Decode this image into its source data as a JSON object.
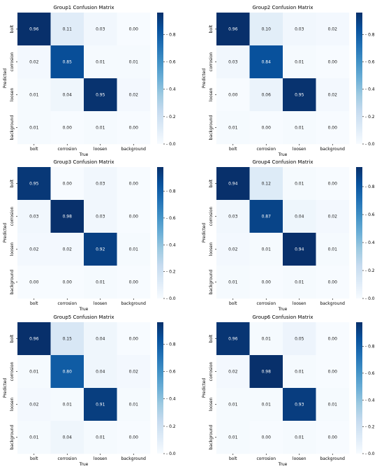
{
  "chart_data": [
    {
      "type": "heatmap",
      "title": "Group1 Confusion Matrix",
      "xlabel": "True",
      "ylabel": "Predicted",
      "x_categories": [
        "bolt",
        "corrosion",
        "loosen",
        "background"
      ],
      "y_categories": [
        "bolt",
        "corrosion",
        "loosen",
        "background"
      ],
      "values": [
        [
          0.96,
          0.11,
          0.03,
          0.0
        ],
        [
          0.02,
          0.85,
          0.01,
          0.01
        ],
        [
          0.01,
          0.04,
          0.95,
          0.02
        ],
        [
          0.01,
          0.0,
          0.01,
          0.0
        ]
      ],
      "labels": [
        [
          "0.96",
          "0.11",
          "0.03",
          "0.00"
        ],
        [
          "0.02",
          "0.85",
          "0.01",
          "0.01"
        ],
        [
          "0.01",
          "0.04",
          "0.95",
          "0.02"
        ],
        [
          "0.01",
          "0.00",
          "0.01",
          "0.00"
        ]
      ],
      "colorbar_range": [
        0,
        0.96
      ],
      "colorbar_ticks": [
        "0.0",
        "0.2",
        "0.4",
        "0.6",
        "0.8"
      ]
    },
    {
      "type": "heatmap",
      "title": "Group2 Confusion Matrix",
      "xlabel": "True",
      "ylabel": "Predicted",
      "x_categories": [
        "bolt",
        "corrosion",
        "loosen",
        "background"
      ],
      "y_categories": [
        "bolt",
        "corrosion",
        "loosen",
        "background"
      ],
      "values": [
        [
          0.96,
          0.1,
          0.03,
          0.02
        ],
        [
          0.03,
          0.84,
          0.01,
          0.0
        ],
        [
          0.0,
          0.06,
          0.95,
          0.02
        ],
        [
          0.01,
          0.0,
          0.01,
          0.0
        ]
      ],
      "labels": [
        [
          "0.96",
          "0.10",
          "0.03",
          "0.02"
        ],
        [
          "0.03",
          "0.84",
          "0.01",
          "0.00"
        ],
        [
          "0.00",
          "0.06",
          "0.95",
          "0.02"
        ],
        [
          "0.01",
          "0.00",
          "0.01",
          "0.00"
        ]
      ],
      "colorbar_range": [
        0,
        0.96
      ],
      "colorbar_ticks": [
        "0.0",
        "0.2",
        "0.4",
        "0.6",
        "0.8"
      ]
    },
    {
      "type": "heatmap",
      "title": "Group3 Confusion Matrix",
      "xlabel": "True",
      "ylabel": "Predicted",
      "x_categories": [
        "bolt",
        "corrosion",
        "loosen",
        "background"
      ],
      "y_categories": [
        "bolt",
        "corrosion",
        "loosen",
        "background"
      ],
      "values": [
        [
          0.95,
          0.0,
          0.03,
          0.0
        ],
        [
          0.03,
          0.98,
          0.03,
          0.0
        ],
        [
          0.02,
          0.02,
          0.92,
          0.01
        ],
        [
          0.0,
          0.0,
          0.01,
          0.0
        ]
      ],
      "labels": [
        [
          "0.95",
          "0.00",
          "0.03",
          "0.00"
        ],
        [
          "0.03",
          "0.98",
          "0.03",
          "0.00"
        ],
        [
          "0.02",
          "0.02",
          "0.92",
          "0.01"
        ],
        [
          "0.00",
          "0.00",
          "0.01",
          "0.00"
        ]
      ],
      "colorbar_range": [
        0,
        0.98
      ],
      "colorbar_ticks": [
        "0.0",
        "0.2",
        "0.4",
        "0.6",
        "0.8"
      ]
    },
    {
      "type": "heatmap",
      "title": "Group4 Confusion Matrix",
      "xlabel": "True",
      "ylabel": "Predicted",
      "x_categories": [
        "bolt",
        "corrosion",
        "loosen",
        "background"
      ],
      "y_categories": [
        "bolt",
        "corrosion",
        "loosen",
        "background"
      ],
      "values": [
        [
          0.94,
          0.12,
          0.01,
          0.0
        ],
        [
          0.03,
          0.87,
          0.04,
          0.02
        ],
        [
          0.02,
          0.01,
          0.94,
          0.01
        ],
        [
          0.01,
          0.0,
          0.01,
          0.0
        ]
      ],
      "labels": [
        [
          "0.94",
          "0.12",
          "0.01",
          "0.00"
        ],
        [
          "0.03",
          "0.87",
          "0.04",
          "0.02"
        ],
        [
          "0.02",
          "0.01",
          "0.94",
          "0.01"
        ],
        [
          "0.01",
          "0.00",
          "0.01",
          "0.00"
        ]
      ],
      "colorbar_range": [
        0,
        0.94
      ],
      "colorbar_ticks": [
        "0.0",
        "0.2",
        "0.4",
        "0.6",
        "0.8"
      ]
    },
    {
      "type": "heatmap",
      "title": "Group5 Confusion Matrix",
      "xlabel": "True",
      "ylabel": "Predicted",
      "x_categories": [
        "bolt",
        "corrosion",
        "loosen",
        "background"
      ],
      "y_categories": [
        "bolt",
        "corrosion",
        "loosen",
        "background"
      ],
      "values": [
        [
          0.96,
          0.15,
          0.04,
          0.0
        ],
        [
          0.01,
          0.8,
          0.04,
          0.02
        ],
        [
          0.02,
          0.01,
          0.91,
          0.01
        ],
        [
          0.01,
          0.04,
          0.01,
          0.0
        ]
      ],
      "labels": [
        [
          "0.96",
          "0.15",
          "0.04",
          "0.00"
        ],
        [
          "0.01",
          "0.80",
          "0.04",
          "0.02"
        ],
        [
          "0.02",
          "0.01",
          "0.91",
          "0.01"
        ],
        [
          "0.01",
          "0.04",
          "0.01",
          "0.00"
        ]
      ],
      "colorbar_range": [
        0,
        0.96
      ],
      "colorbar_ticks": [
        "0.0",
        "0.2",
        "0.4",
        "0.6",
        "0.8"
      ]
    },
    {
      "type": "heatmap",
      "title": "Group6 Confusion Matrix",
      "xlabel": "True",
      "ylabel": "Predicted",
      "x_categories": [
        "bolt",
        "corrosion",
        "loosen",
        "background"
      ],
      "y_categories": [
        "bolt",
        "corrosion",
        "loosen",
        "background"
      ],
      "values": [
        [
          0.96,
          0.01,
          0.05,
          0.0
        ],
        [
          0.02,
          0.98,
          0.01,
          0.0
        ],
        [
          0.01,
          0.01,
          0.93,
          0.01
        ],
        [
          0.01,
          0.0,
          0.01,
          0.0
        ]
      ],
      "labels": [
        [
          "0.96",
          "0.01",
          "0.05",
          "0.00"
        ],
        [
          "0.02",
          "0.98",
          "0.01",
          "0.00"
        ],
        [
          "0.01",
          "0.01",
          "0.93",
          "0.01"
        ],
        [
          "0.01",
          "0.00",
          "0.01",
          "0.00"
        ]
      ],
      "colorbar_range": [
        0,
        0.98
      ],
      "colorbar_ticks": [
        "0.0",
        "0.2",
        "0.4",
        "0.6",
        "0.8"
      ]
    }
  ]
}
